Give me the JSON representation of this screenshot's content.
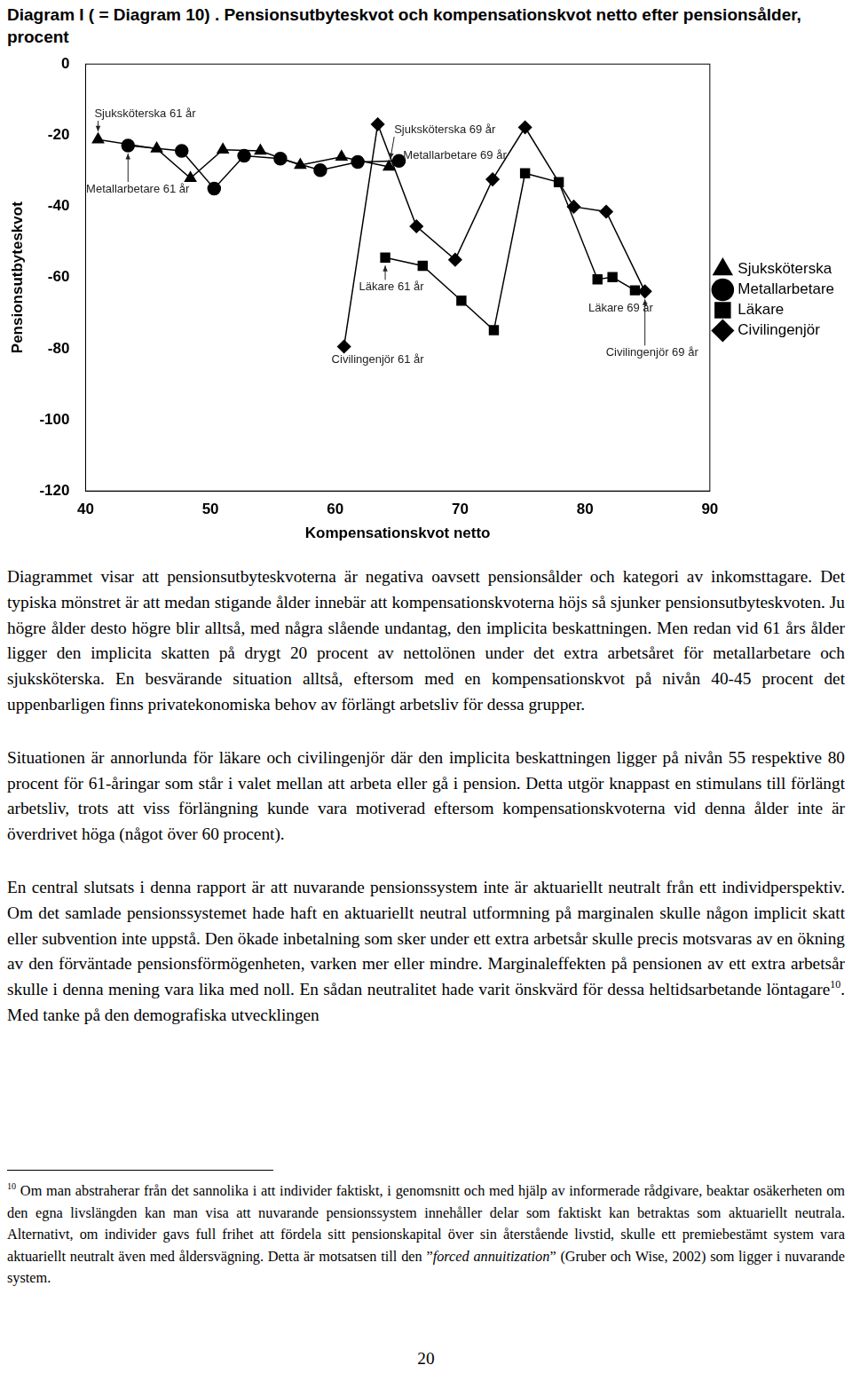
{
  "heading": "Diagram I ( = Diagram 10) . Pensionsutbyteskvot och kompensationskvot netto efter pensionsålder, procent",
  "chart_data": {
    "type": "line",
    "x_label": "Kompensationskvot netto",
    "y_label": "Pensionsutbyteskvot",
    "xlim": [
      40,
      90
    ],
    "xticks": [
      40,
      50,
      60,
      70,
      80,
      90
    ],
    "ylim": [
      -120,
      0
    ],
    "yticks": [
      -120,
      -100,
      -80,
      -60,
      -40,
      -20,
      0
    ],
    "grid": false,
    "legend": "right",
    "series": [
      {
        "name": "Sjuksköterska",
        "color": "#000000",
        "marker": "triangle",
        "x": [
          41.0,
          45.7,
          48.4,
          51.0,
          54.0,
          57.2,
          60.5,
          64.3
        ],
        "values": [
          -21.2,
          -23.8,
          -32.1,
          -24.1,
          -24.4,
          -28.4,
          -26.1,
          -28.9
        ]
      },
      {
        "name": "Metallarbetare",
        "color": "#000000",
        "marker": "circle",
        "x": [
          43.4,
          47.7,
          50.3,
          52.7,
          55.6,
          58.8,
          61.8,
          65.1
        ],
        "values": [
          -22.9,
          -24.4,
          -35.0,
          -25.8,
          -26.6,
          -29.8,
          -27.5,
          -27.2
        ]
      },
      {
        "name": "Läkare",
        "color": "#000000",
        "marker": "square",
        "x": [
          64.0,
          67.0,
          70.1,
          72.7,
          75.2,
          77.9,
          81.0,
          82.2,
          84.0
        ],
        "values": [
          -54.4,
          -56.7,
          -66.5,
          -74.8,
          -30.7,
          -33.2,
          -60.5,
          -59.9,
          -63.6
        ]
      },
      {
        "name": "Civilingenjör",
        "color": "#000000",
        "marker": "diamond",
        "x": [
          60.7,
          63.4,
          66.5,
          69.6,
          72.6,
          75.2,
          79.1,
          81.7,
          84.8
        ],
        "values": [
          -79.4,
          -16.9,
          -45.6,
          -55.0,
          -32.4,
          -17.8,
          -40.1,
          -41.5,
          -63.9
        ]
      }
    ],
    "annotations": [
      {
        "text": "Sjuksköterska 61 år",
        "x": 41.0,
        "y": -21.2
      },
      {
        "text": "Metallarbetare 61 år",
        "x": 43.4,
        "y": -22.9
      },
      {
        "text": "Sjuksköterska 69 år",
        "x": 64.3,
        "y": -28.9
      },
      {
        "text": "Metallarbetare 69 år",
        "x": 65.1,
        "y": -27.2
      },
      {
        "text": "Läkare 61 år",
        "x": 64.0,
        "y": -54.4
      },
      {
        "text": "Civilingenjör 61 år",
        "x": 60.7,
        "y": -79.4
      },
      {
        "text": "Läkare 69 år",
        "x": 84.0,
        "y": -63.6
      },
      {
        "text": "Civilingenjör 69 år",
        "x": 84.8,
        "y": -63.9
      }
    ]
  },
  "paragraphs": [
    {
      "text": "Diagrammet visar att pensionsutbyteskvoterna är negativa oavsett pensionsålder och kategori av inkomsttagare. Det typiska mönstret är att medan stigande ålder innebär att kompensationskvoterna höjs så sjunker pensionsutbyteskvoten. Ju högre ålder desto högre blir alltså, med några slående undantag, den implicita beskattningen. Men redan vid 61 års ålder ligger den implicita skatten på drygt 20 procent av nettolönen under det extra arbetsåret för metallarbetare och sjuksköterska. En besvärande situation alltså, eftersom med en kompensationskvot på nivån 40-45 procent det uppenbarligen finns privatekonomiska behov av förlängt arbetsliv för dessa grupper."
    },
    {
      "text": "Situationen är annorlunda för läkare och civilingenjör där den implicita beskattningen ligger på nivån 55 respektive 80 procent för 61-åringar som står i valet mellan att arbeta eller gå i pension. Detta utgör knappast en stimulans till förlängt arbetsliv, trots att viss förlängning kunde vara motiverad eftersom kompensationskvoterna vid denna ålder inte är överdrivet höga (något över 60 procent)."
    },
    {
      "text": "En central slutsats i denna rapport är att nuvarande pensionssystem inte är aktuariellt neutralt från ett individperspektiv. Om det samlade pensionssystemet hade haft en aktuariellt neutral utformning på marginalen skulle någon implicit skatt eller subvention inte uppstå. Den ökade inbetalning som sker under ett extra arbetsår skulle precis motsvaras av en ökning av den förväntade pensionsförmögenheten, varken mer eller mindre. Marginaleffekten på pensionen av ett extra arbetsår skulle i denna mening vara lika med noll. En sådan neutralitet hade varit önskvärd för dessa heltidsarbetande löntagare",
      "note_ref": "10",
      "text_after": ". Med tanke på den demografiska utvecklingen"
    }
  ],
  "footnote": {
    "marker": "10",
    "text": " Om man abstraherar från det sannolika i att individer faktiskt, i genomsnitt och med hjälp av informerade rådgivare, beaktar osäkerheten om den egna livslängden kan man visa att nuvarande pensionssystem innehåller delar som faktiskt kan betraktas som aktuariellt neutrala. Alternativt, om individer gavs full frihet att fördela sitt pensionskapital över sin återstående livstid, skulle ett premiebestämt system vara aktuariellt neutralt även med åldersvägning. Detta är motsatsen till  den ”",
    "italic": "forced annuitization",
    "text_after": "” (Gruber och Wise, 2002) som ligger i nuvarande system."
  },
  "page_number": "20"
}
